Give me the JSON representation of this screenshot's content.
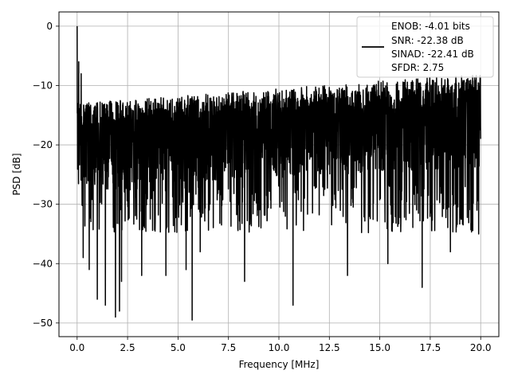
{
  "chart_data": {
    "type": "line",
    "title": "",
    "xlabel": "Frequency [MHz]",
    "ylabel": "PSD [dB]",
    "xlim": [
      -0.9,
      20.9
    ],
    "ylim": [
      -52.3,
      2.4
    ],
    "xticks": [
      0.0,
      2.5,
      5.0,
      7.5,
      10.0,
      12.5,
      15.0,
      17.5,
      20.0
    ],
    "xtick_labels": [
      "0.0",
      "2.5",
      "5.0",
      "7.5",
      "10.0",
      "12.5",
      "15.0",
      "17.5",
      "20.0"
    ],
    "yticks": [
      0,
      -10,
      -20,
      -30,
      -40,
      -50
    ],
    "ytick_labels": [
      "0",
      "−10",
      "−20",
      "−30",
      "−40",
      "−50"
    ],
    "grid": true,
    "legend_position": "top-right",
    "legend": {
      "lines": [
        "ENOB: -4.01 bits",
        "SNR: -22.38 dB",
        "SINAD: -22.41 dB",
        "SFDR: 2.75"
      ]
    },
    "series": [
      {
        "color": "#000000",
        "x_range": [
          0.0,
          20.0
        ],
        "peak": {
          "x": 0.0,
          "y": 0.0
        },
        "notable_points": [
          {
            "x": 0.04,
            "y": -14
          },
          {
            "x": 0.08,
            "y": -6
          },
          {
            "x": 0.15,
            "y": -20
          },
          {
            "x": 0.2,
            "y": -8
          },
          {
            "x": 0.3,
            "y": -39
          },
          {
            "x": 0.6,
            "y": -41
          },
          {
            "x": 1.0,
            "y": -46
          },
          {
            "x": 1.4,
            "y": -47
          },
          {
            "x": 1.9,
            "y": -49
          },
          {
            "x": 2.1,
            "y": -48
          },
          {
            "x": 2.2,
            "y": -43
          },
          {
            "x": 3.2,
            "y": -42
          },
          {
            "x": 4.4,
            "y": -42
          },
          {
            "x": 5.4,
            "y": -41
          },
          {
            "x": 5.7,
            "y": -49.5
          },
          {
            "x": 6.1,
            "y": -38
          },
          {
            "x": 8.3,
            "y": -43
          },
          {
            "x": 10.7,
            "y": -47
          },
          {
            "x": 13.4,
            "y": -42
          },
          {
            "x": 15.4,
            "y": -40
          },
          {
            "x": 17.1,
            "y": -44
          },
          {
            "x": 18.5,
            "y": -38
          },
          {
            "x": 19.9,
            "y": -35
          }
        ],
        "noise_band": {
          "low_freq_upper": -13,
          "high_freq_upper": -8,
          "center_low": -20,
          "center_high": -17,
          "typical_lower": -30
        },
        "sample_count": 2600
      }
    ]
  }
}
